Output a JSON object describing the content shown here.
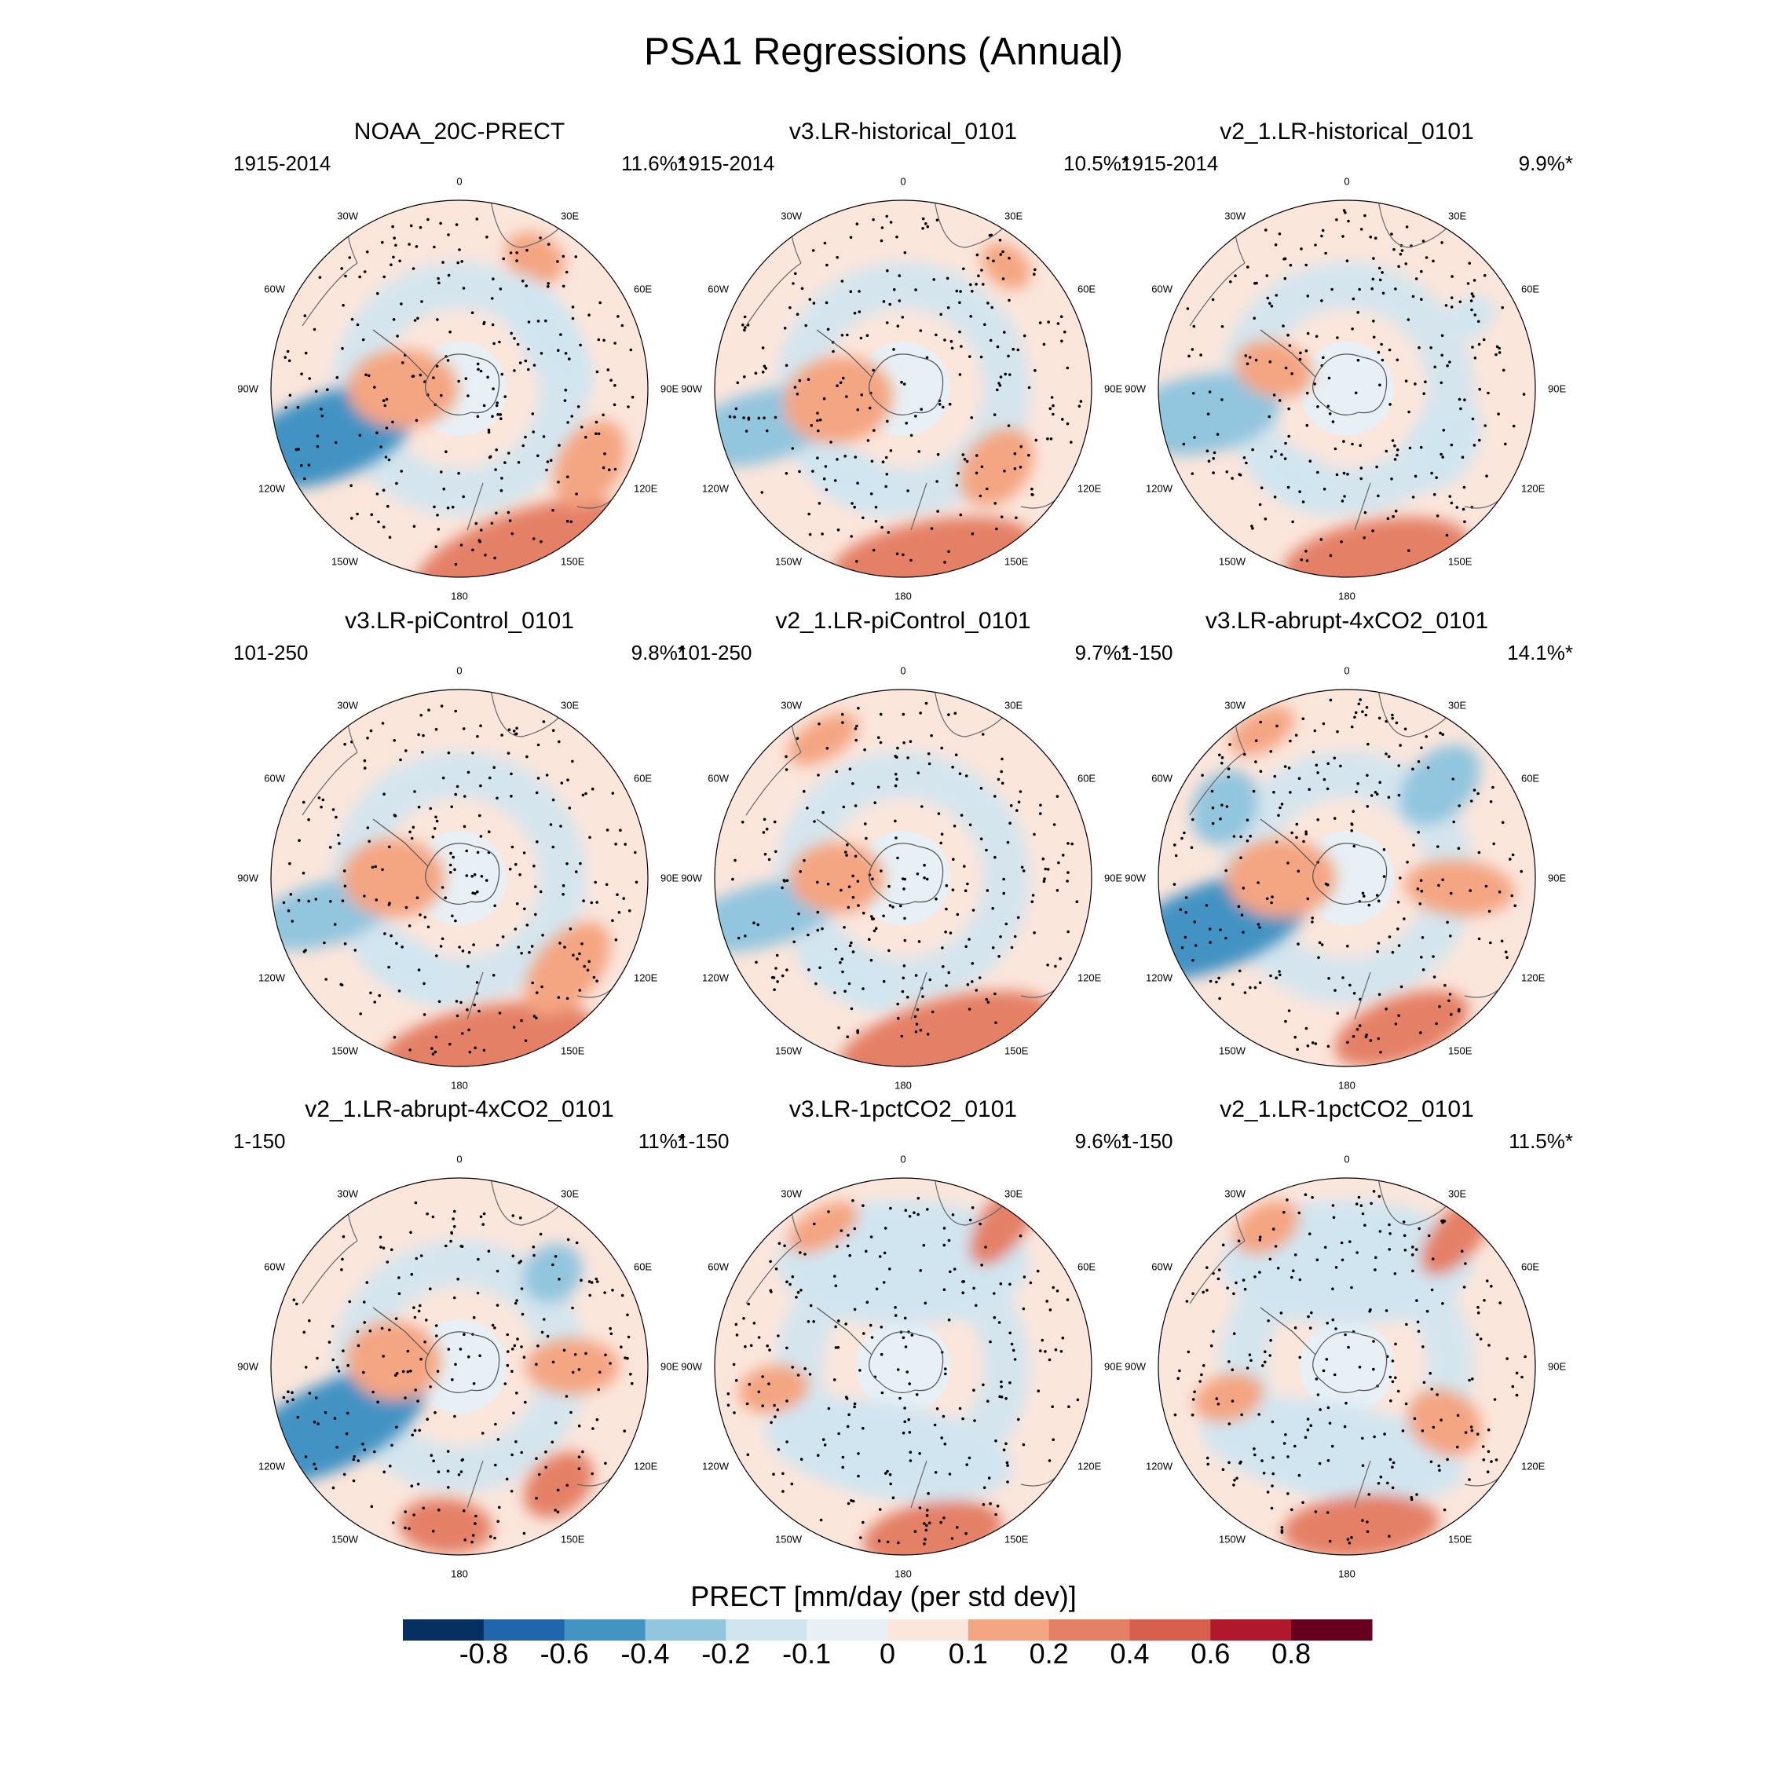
{
  "title": "PSA1 Regressions (Annual)",
  "chart_data": {
    "type": "heatmap",
    "projection": "south-polar-stereographic",
    "variable": "PRECT",
    "units_label": "PRECT [mm/day (per std dev)]",
    "longitude_labels": [
      "0",
      "30E",
      "60E",
      "90E",
      "120E",
      "150E",
      "180",
      "150W",
      "120W",
      "90W",
      "60W",
      "30W"
    ],
    "stippling": "significant regions marked with dots",
    "panels": [
      {
        "title": "NOAA_20C-PRECT",
        "period": "1915-2014",
        "variance": "11.6%*"
      },
      {
        "title": "v3.LR-historical_0101",
        "period": "1915-2014",
        "variance": "10.5%*"
      },
      {
        "title": "v2_1.LR-historical_0101",
        "period": "1915-2014",
        "variance": "9.9%*"
      },
      {
        "title": "v3.LR-piControl_0101",
        "period": "101-250",
        "variance": "9.8%*"
      },
      {
        "title": "v2_1.LR-piControl_0101",
        "period": "101-250",
        "variance": "9.7%*"
      },
      {
        "title": "v3.LR-abrupt-4xCO2_0101",
        "period": "1-150",
        "variance": "14.1%*"
      },
      {
        "title": "v2_1.LR-abrupt-4xCO2_0101",
        "period": "1-150",
        "variance": "11%*"
      },
      {
        "title": "v3.LR-1pctCO2_0101",
        "period": "1-150",
        "variance": "9.6%*"
      },
      {
        "title": "v2_1.LR-1pctCO2_0101",
        "period": "1-150",
        "variance": "11.5%*"
      }
    ],
    "colorbar": {
      "levels": [
        "-0.8",
        "-0.6",
        "-0.4",
        "-0.2",
        "-0.1",
        "0",
        "0.1",
        "0.2",
        "0.4",
        "0.6",
        "0.8"
      ],
      "colors": [
        "#053061",
        "#2166ac",
        "#4393c3",
        "#92c5de",
        "#d1e5f0",
        "#e8f0f5",
        "#fbe6dc",
        "#f4a582",
        "#e48066",
        "#d6604d",
        "#b2182b",
        "#67001f"
      ]
    }
  }
}
